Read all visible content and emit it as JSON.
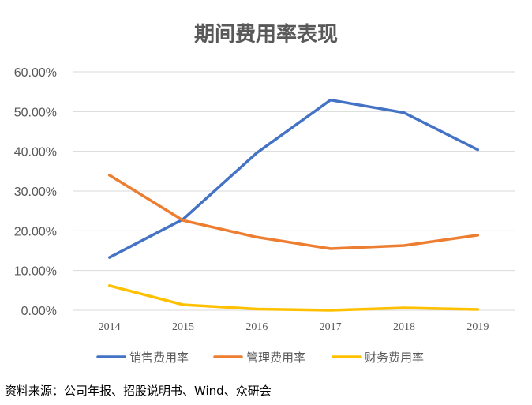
{
  "chart_data": {
    "type": "line",
    "title": "期间费用率表现",
    "categories": [
      "2014",
      "2015",
      "2016",
      "2017",
      "2018",
      "2019"
    ],
    "series": [
      {
        "name": "销售费用率",
        "color": "#4472C4",
        "values": [
          13.3,
          22.9,
          39.6,
          52.9,
          49.7,
          40.4
        ]
      },
      {
        "name": "管理费用率",
        "color": "#ED7D31",
        "values": [
          34.0,
          22.6,
          18.4,
          15.5,
          16.3,
          18.9
        ]
      },
      {
        "name": "财务费用率",
        "color": "#FFC000",
        "values": [
          6.2,
          1.4,
          0.3,
          0.0,
          0.6,
          0.2
        ]
      }
    ],
    "y_ticks": [
      "0.00%",
      "10.00%",
      "20.00%",
      "30.00%",
      "40.00%",
      "50.00%",
      "60.00%"
    ],
    "ylim": [
      0,
      60
    ],
    "grid": true,
    "legend_position": "bottom",
    "gridline_color": "#D9D9D9",
    "text_color": "#595959"
  },
  "source": "资料来源：公司年报、招股说明书、Wind、众研会"
}
